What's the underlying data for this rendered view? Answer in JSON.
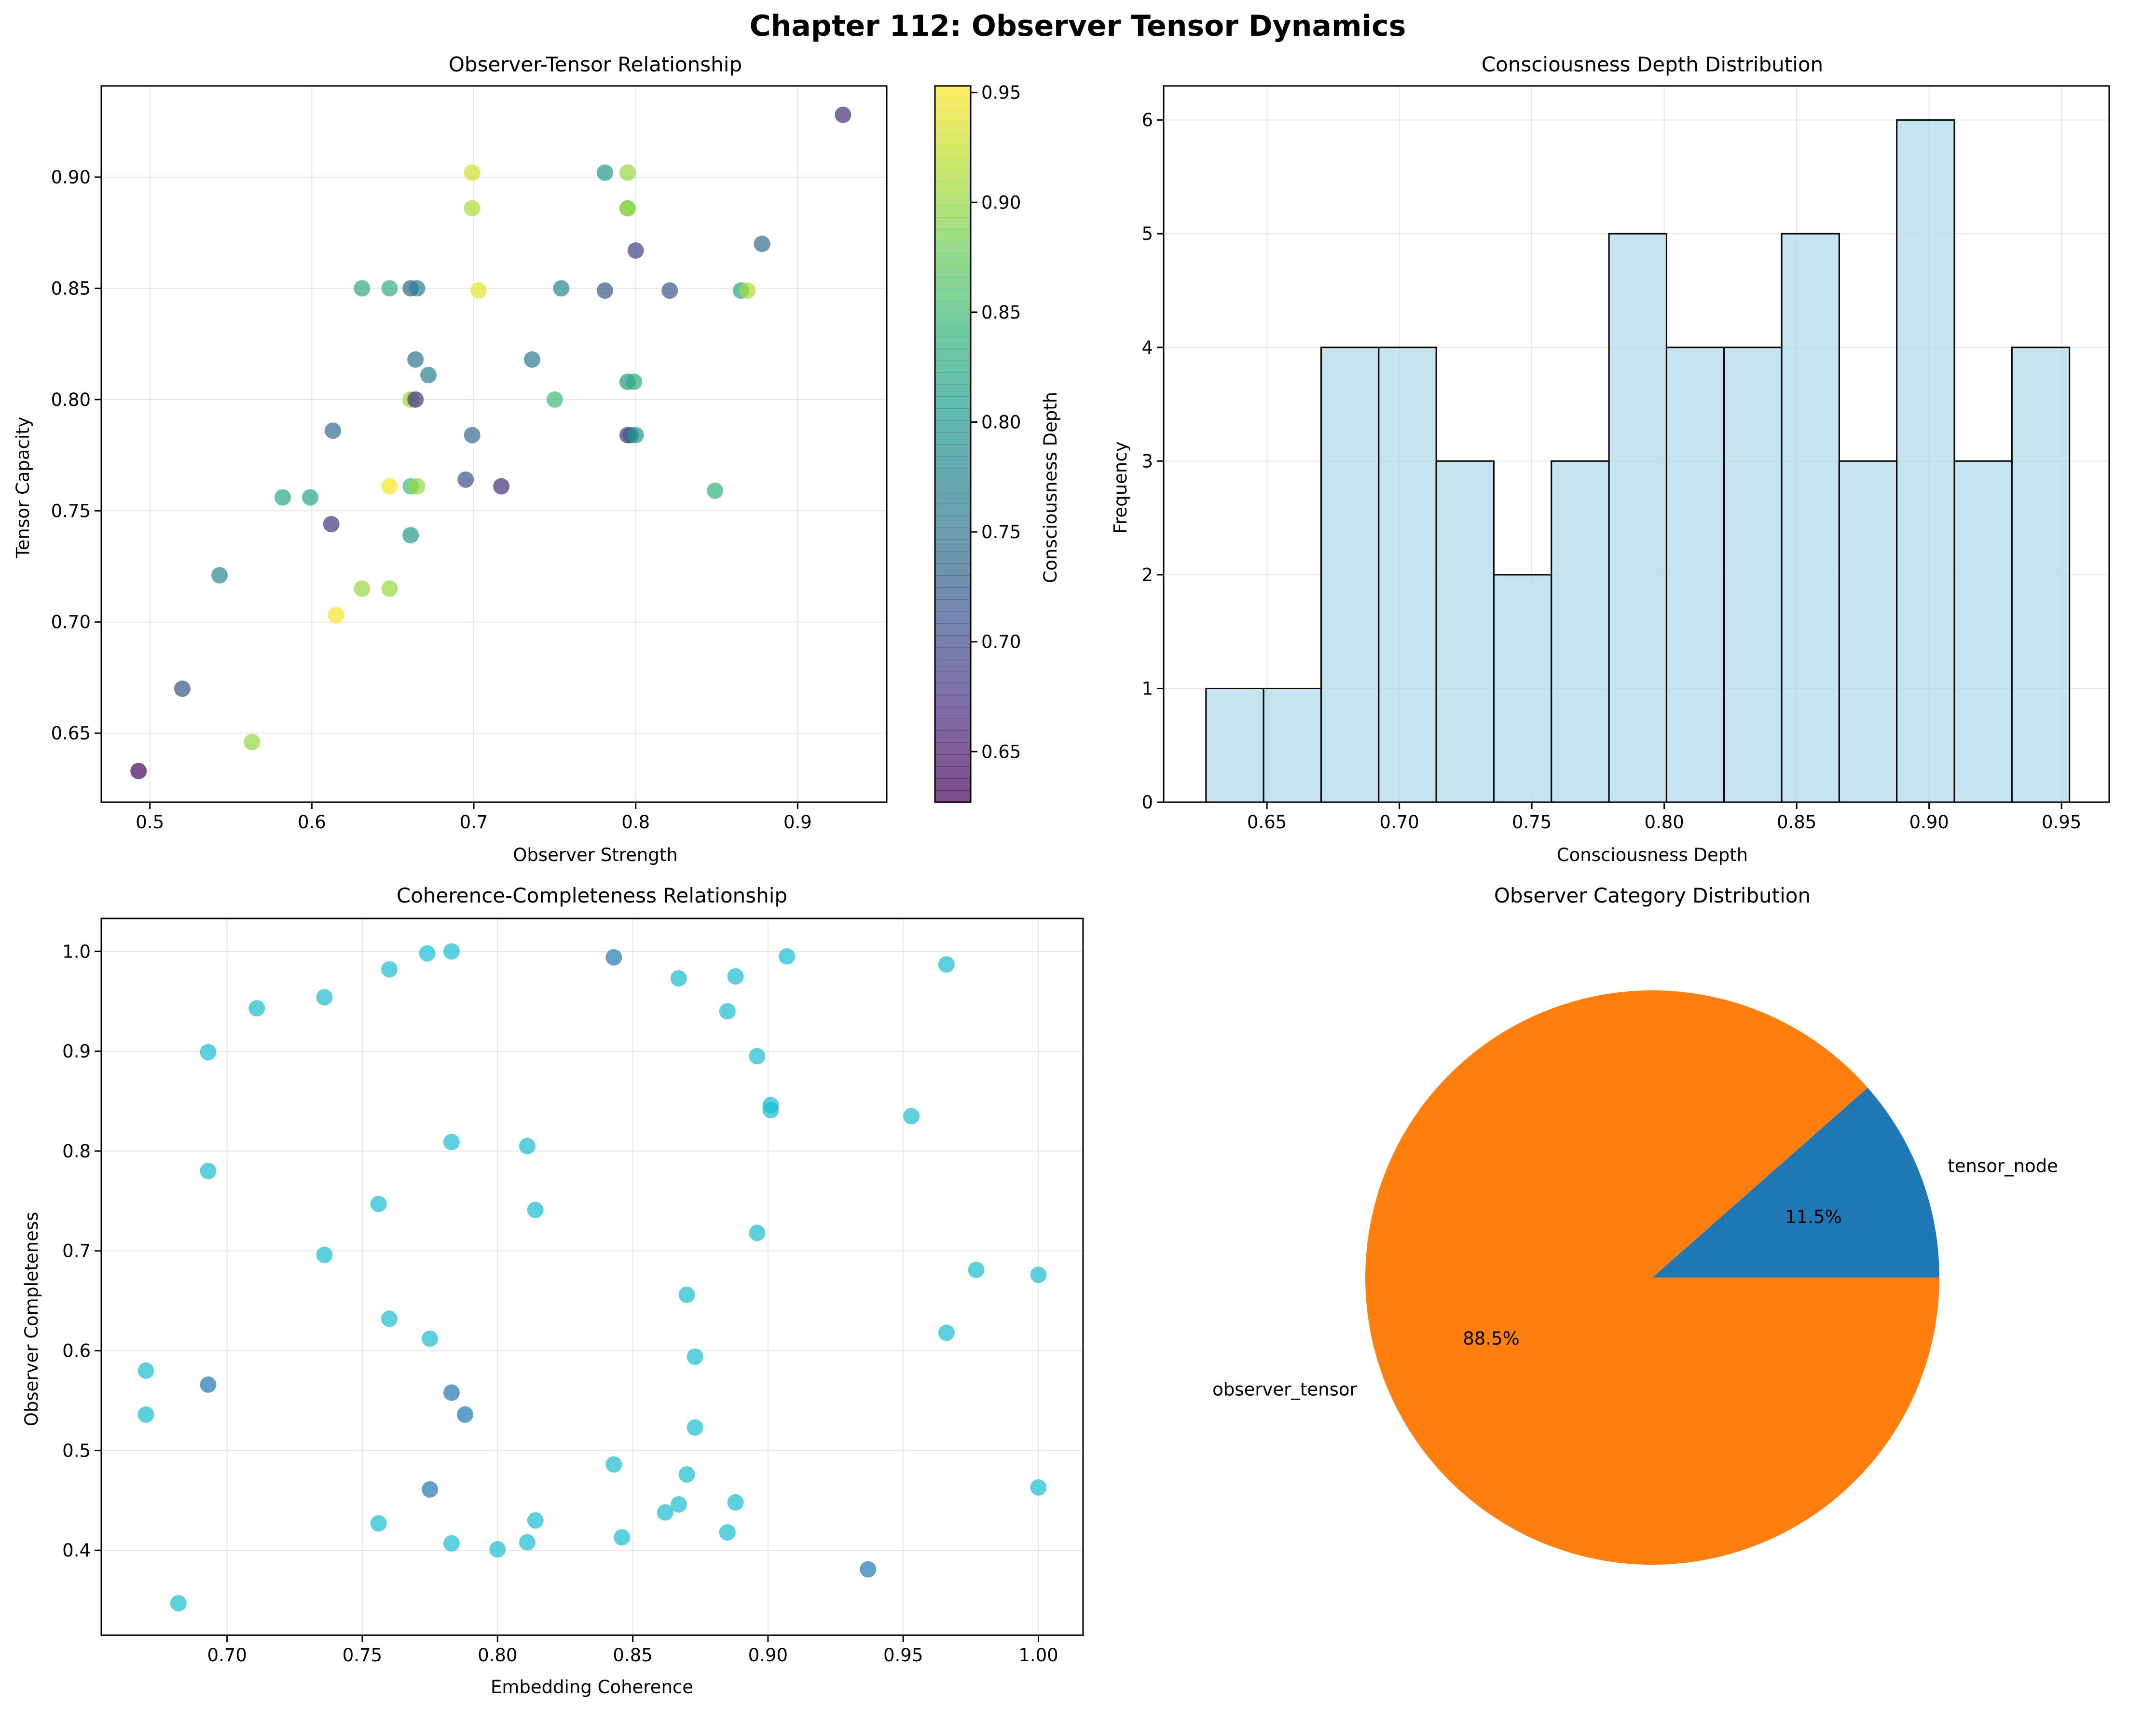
{
  "figure": {
    "suptitle": "Chapter 112: Observer Tensor Dynamics"
  },
  "colors": {
    "grid": "#b0b0b0",
    "hist_fill": "#add8e6",
    "scatter2_light": "#17becf",
    "scatter2_dark": "#1f77b4",
    "pie_tensor_node": "#1f77b4",
    "pie_observer_tensor": "#ff7f0e"
  },
  "chart_data": [
    {
      "id": "observer_tensor",
      "type": "scatter",
      "title": "Observer-Tensor Relationship",
      "xlabel": "Observer Strength",
      "ylabel": "Tensor Capacity",
      "xlim": [
        0.47,
        0.955
      ],
      "ylim": [
        0.619,
        0.941
      ],
      "xticks": [
        0.5,
        0.6,
        0.7,
        0.8,
        0.9
      ],
      "xtick_labels": [
        "0.5",
        "0.6",
        "0.7",
        "0.8",
        "0.9"
      ],
      "yticks": [
        0.65,
        0.7,
        0.75,
        0.8,
        0.85,
        0.9
      ],
      "ytick_labels": [
        "0.65",
        "0.70",
        "0.75",
        "0.80",
        "0.85",
        "0.90"
      ],
      "grid": true,
      "colormap": "viridis",
      "colorbar": {
        "label": "Consciousness Depth",
        "range": [
          0.627,
          0.953
        ],
        "ticks": [
          0.65,
          0.7,
          0.75,
          0.8,
          0.85,
          0.9,
          0.95
        ],
        "tick_labels": [
          "0.65",
          "0.70",
          "0.75",
          "0.80",
          "0.85",
          "0.90",
          "0.95"
        ]
      },
      "points": [
        {
          "x": 0.493,
          "y": 0.633,
          "c": 0.63
        },
        {
          "x": 0.52,
          "y": 0.67,
          "c": 0.71
        },
        {
          "x": 0.563,
          "y": 0.646,
          "c": 0.9
        },
        {
          "x": 0.543,
          "y": 0.721,
          "c": 0.78
        },
        {
          "x": 0.582,
          "y": 0.756,
          "c": 0.82
        },
        {
          "x": 0.599,
          "y": 0.756,
          "c": 0.82
        },
        {
          "x": 0.612,
          "y": 0.744,
          "c": 0.68
        },
        {
          "x": 0.613,
          "y": 0.786,
          "c": 0.74
        },
        {
          "x": 0.615,
          "y": 0.703,
          "c": 0.95
        },
        {
          "x": 0.631,
          "y": 0.715,
          "c": 0.9
        },
        {
          "x": 0.648,
          "y": 0.715,
          "c": 0.9
        },
        {
          "x": 0.631,
          "y": 0.85,
          "c": 0.83
        },
        {
          "x": 0.648,
          "y": 0.85,
          "c": 0.84
        },
        {
          "x": 0.648,
          "y": 0.761,
          "c": 0.95
        },
        {
          "x": 0.661,
          "y": 0.761,
          "c": 0.85
        },
        {
          "x": 0.665,
          "y": 0.761,
          "c": 0.9
        },
        {
          "x": 0.661,
          "y": 0.739,
          "c": 0.8
        },
        {
          "x": 0.661,
          "y": 0.8,
          "c": 0.9
        },
        {
          "x": 0.664,
          "y": 0.8,
          "c": 0.67
        },
        {
          "x": 0.661,
          "y": 0.85,
          "c": 0.73
        },
        {
          "x": 0.665,
          "y": 0.85,
          "c": 0.77
        },
        {
          "x": 0.664,
          "y": 0.818,
          "c": 0.75
        },
        {
          "x": 0.672,
          "y": 0.811,
          "c": 0.77
        },
        {
          "x": 0.695,
          "y": 0.764,
          "c": 0.71
        },
        {
          "x": 0.699,
          "y": 0.784,
          "c": 0.74
        },
        {
          "x": 0.699,
          "y": 0.902,
          "c": 0.93
        },
        {
          "x": 0.699,
          "y": 0.886,
          "c": 0.91
        },
        {
          "x": 0.703,
          "y": 0.849,
          "c": 0.94
        },
        {
          "x": 0.717,
          "y": 0.761,
          "c": 0.67
        },
        {
          "x": 0.736,
          "y": 0.818,
          "c": 0.76
        },
        {
          "x": 0.75,
          "y": 0.8,
          "c": 0.85
        },
        {
          "x": 0.754,
          "y": 0.85,
          "c": 0.78
        },
        {
          "x": 0.781,
          "y": 0.902,
          "c": 0.8
        },
        {
          "x": 0.781,
          "y": 0.849,
          "c": 0.72
        },
        {
          "x": 0.795,
          "y": 0.902,
          "c": 0.9
        },
        {
          "x": 0.795,
          "y": 0.886,
          "c": 0.88
        },
        {
          "x": 0.795,
          "y": 0.886,
          "c": 0.9
        },
        {
          "x": 0.795,
          "y": 0.808,
          "c": 0.8
        },
        {
          "x": 0.799,
          "y": 0.808,
          "c": 0.83
        },
        {
          "x": 0.795,
          "y": 0.784,
          "c": 0.68
        },
        {
          "x": 0.797,
          "y": 0.784,
          "c": 0.72
        },
        {
          "x": 0.8,
          "y": 0.784,
          "c": 0.8
        },
        {
          "x": 0.8,
          "y": 0.867,
          "c": 0.69
        },
        {
          "x": 0.821,
          "y": 0.849,
          "c": 0.72
        },
        {
          "x": 0.849,
          "y": 0.759,
          "c": 0.84
        },
        {
          "x": 0.865,
          "y": 0.849,
          "c": 0.82
        },
        {
          "x": 0.869,
          "y": 0.849,
          "c": 0.91
        },
        {
          "x": 0.878,
          "y": 0.87,
          "c": 0.74
        },
        {
          "x": 0.928,
          "y": 0.928,
          "c": 0.67
        }
      ]
    },
    {
      "id": "depth_hist",
      "type": "bar",
      "title": "Consciousness Depth Distribution",
      "xlabel": "Consciousness Depth",
      "ylabel": "Frequency",
      "xlim": [
        0.611,
        0.968
      ],
      "ylim": [
        0,
        6.3
      ],
      "xticks": [
        0.65,
        0.7,
        0.75,
        0.8,
        0.85,
        0.9,
        0.95
      ],
      "xtick_labels": [
        "0.65",
        "0.70",
        "0.75",
        "0.80",
        "0.85",
        "0.90",
        "0.95"
      ],
      "yticks": [
        0,
        1,
        2,
        3,
        4,
        5,
        6
      ],
      "ytick_labels": [
        "0",
        "1",
        "2",
        "3",
        "4",
        "5",
        "6"
      ],
      "grid": true,
      "bin_start": 0.627,
      "bin_end": 0.953,
      "values": [
        1,
        1,
        4,
        4,
        3,
        2,
        3,
        5,
        4,
        4,
        5,
        3,
        6,
        3,
        4
      ]
    },
    {
      "id": "coherence_completeness",
      "type": "scatter",
      "title": "Coherence-Completeness Relationship",
      "xlabel": "Embedding Coherence",
      "ylabel": "Observer Completeness",
      "xlim": [
        0.6535,
        1.0165
      ],
      "ylim": [
        0.315,
        1.033
      ],
      "xticks": [
        0.7,
        0.75,
        0.8,
        0.85,
        0.9,
        0.95,
        1.0
      ],
      "xtick_labels": [
        "0.70",
        "0.75",
        "0.80",
        "0.85",
        "0.90",
        "0.95",
        "1.00"
      ],
      "yticks": [
        0.4,
        0.5,
        0.6,
        0.7,
        0.8,
        0.9,
        1.0
      ],
      "ytick_labels": [
        "0.4",
        "0.5",
        "0.6",
        "0.7",
        "0.8",
        "0.9",
        "1.0"
      ],
      "grid": true,
      "points": [
        {
          "x": 0.682,
          "y": 0.347,
          "k": "observer_tensor"
        },
        {
          "x": 0.67,
          "y": 0.58,
          "k": "observer_tensor"
        },
        {
          "x": 0.67,
          "y": 0.536,
          "k": "observer_tensor"
        },
        {
          "x": 0.693,
          "y": 0.566,
          "k": "tensor_node"
        },
        {
          "x": 0.693,
          "y": 0.78,
          "k": "observer_tensor"
        },
        {
          "x": 0.693,
          "y": 0.899,
          "k": "observer_tensor"
        },
        {
          "x": 0.711,
          "y": 0.943,
          "k": "observer_tensor"
        },
        {
          "x": 0.736,
          "y": 0.954,
          "k": "observer_tensor"
        },
        {
          "x": 0.736,
          "y": 0.696,
          "k": "observer_tensor"
        },
        {
          "x": 0.756,
          "y": 0.747,
          "k": "observer_tensor"
        },
        {
          "x": 0.756,
          "y": 0.427,
          "k": "observer_tensor"
        },
        {
          "x": 0.76,
          "y": 0.982,
          "k": "observer_tensor"
        },
        {
          "x": 0.76,
          "y": 0.632,
          "k": "observer_tensor"
        },
        {
          "x": 0.774,
          "y": 0.998,
          "k": "observer_tensor"
        },
        {
          "x": 0.775,
          "y": 0.612,
          "k": "observer_tensor"
        },
        {
          "x": 0.775,
          "y": 0.461,
          "k": "tensor_node"
        },
        {
          "x": 0.783,
          "y": 1.0,
          "k": "observer_tensor"
        },
        {
          "x": 0.783,
          "y": 0.809,
          "k": "observer_tensor"
        },
        {
          "x": 0.783,
          "y": 0.558,
          "k": "tensor_node"
        },
        {
          "x": 0.783,
          "y": 0.407,
          "k": "observer_tensor"
        },
        {
          "x": 0.788,
          "y": 0.536,
          "k": "tensor_node"
        },
        {
          "x": 0.8,
          "y": 0.401,
          "k": "observer_tensor"
        },
        {
          "x": 0.811,
          "y": 0.805,
          "k": "observer_tensor"
        },
        {
          "x": 0.811,
          "y": 0.408,
          "k": "observer_tensor"
        },
        {
          "x": 0.814,
          "y": 0.741,
          "k": "observer_tensor"
        },
        {
          "x": 0.814,
          "y": 0.43,
          "k": "observer_tensor"
        },
        {
          "x": 0.843,
          "y": 0.994,
          "k": "tensor_node"
        },
        {
          "x": 0.843,
          "y": 0.486,
          "k": "observer_tensor"
        },
        {
          "x": 0.846,
          "y": 0.413,
          "k": "observer_tensor"
        },
        {
          "x": 0.862,
          "y": 0.438,
          "k": "observer_tensor"
        },
        {
          "x": 0.867,
          "y": 0.973,
          "k": "observer_tensor"
        },
        {
          "x": 0.867,
          "y": 0.446,
          "k": "observer_tensor"
        },
        {
          "x": 0.87,
          "y": 0.656,
          "k": "observer_tensor"
        },
        {
          "x": 0.87,
          "y": 0.476,
          "k": "observer_tensor"
        },
        {
          "x": 0.873,
          "y": 0.594,
          "k": "observer_tensor"
        },
        {
          "x": 0.873,
          "y": 0.523,
          "k": "observer_tensor"
        },
        {
          "x": 0.885,
          "y": 0.94,
          "k": "observer_tensor"
        },
        {
          "x": 0.885,
          "y": 0.418,
          "k": "observer_tensor"
        },
        {
          "x": 0.888,
          "y": 0.975,
          "k": "observer_tensor"
        },
        {
          "x": 0.888,
          "y": 0.448,
          "k": "observer_tensor"
        },
        {
          "x": 0.896,
          "y": 0.895,
          "k": "observer_tensor"
        },
        {
          "x": 0.896,
          "y": 0.718,
          "k": "observer_tensor"
        },
        {
          "x": 0.901,
          "y": 0.846,
          "k": "observer_tensor"
        },
        {
          "x": 0.901,
          "y": 0.841,
          "k": "observer_tensor"
        },
        {
          "x": 0.907,
          "y": 0.995,
          "k": "observer_tensor"
        },
        {
          "x": 0.937,
          "y": 0.381,
          "k": "tensor_node"
        },
        {
          "x": 0.953,
          "y": 0.835,
          "k": "observer_tensor"
        },
        {
          "x": 0.966,
          "y": 0.987,
          "k": "observer_tensor"
        },
        {
          "x": 0.966,
          "y": 0.618,
          "k": "observer_tensor"
        },
        {
          "x": 0.977,
          "y": 0.681,
          "k": "observer_tensor"
        },
        {
          "x": 1.0,
          "y": 0.676,
          "k": "observer_tensor"
        },
        {
          "x": 1.0,
          "y": 0.463,
          "k": "observer_tensor"
        }
      ]
    },
    {
      "id": "category_pie",
      "type": "pie",
      "title": "Observer Category Distribution",
      "slices": [
        {
          "label": "tensor_node",
          "value": 11.5,
          "pct_label": "11.5%"
        },
        {
          "label": "observer_tensor",
          "value": 88.5,
          "pct_label": "88.5%"
        }
      ]
    }
  ]
}
